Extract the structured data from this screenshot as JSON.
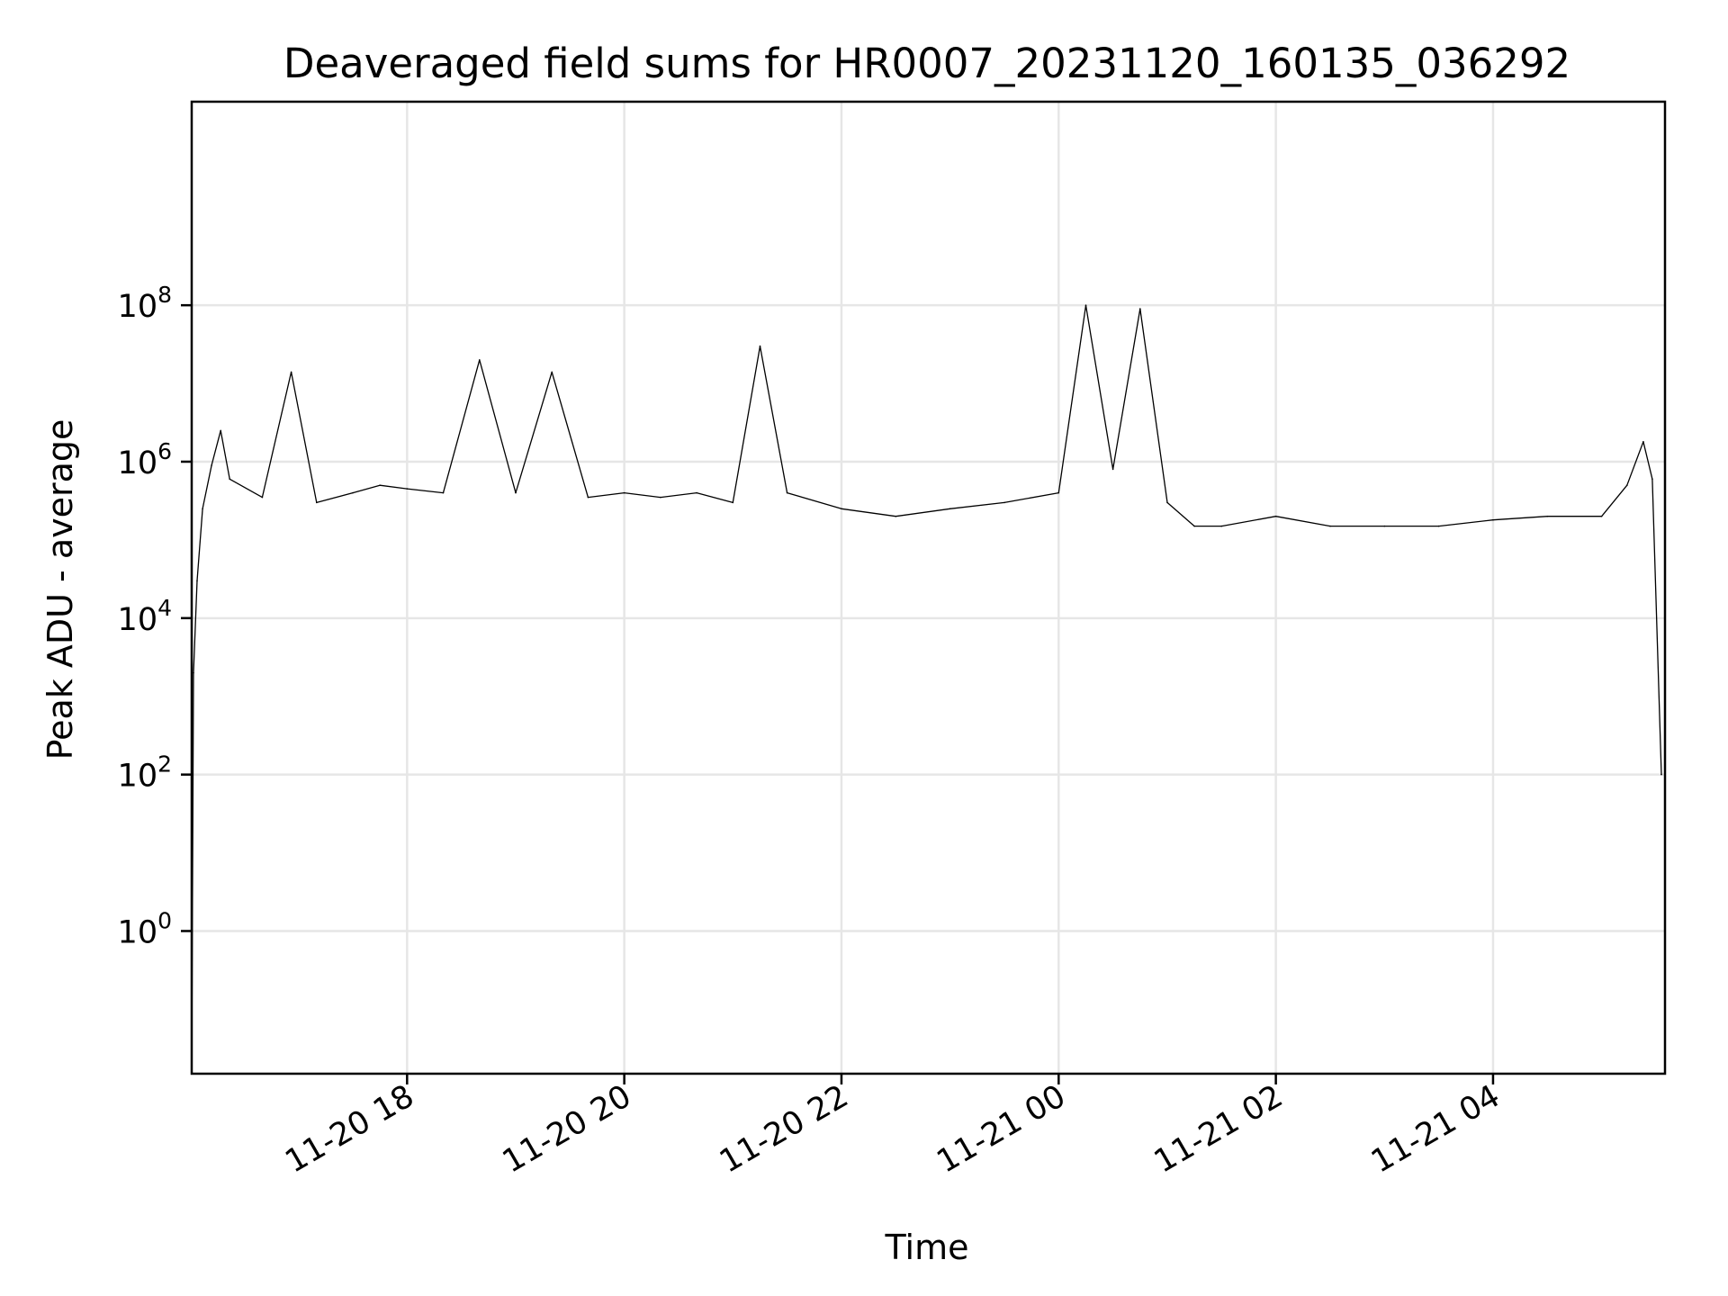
{
  "chart_data": {
    "type": "line",
    "title": "Deaveraged field sums for HR0007_20231120_160135_036292",
    "xlabel": "Time",
    "ylabel": "Peak ADU - average",
    "x_scale": "time",
    "y_scale": "log",
    "xlim": [
      "2023-11-20 16:01",
      "2023-11-21 05:35"
    ],
    "ylim": [
      0.015,
      40000000000
    ],
    "grid": true,
    "x_ticks": [
      {
        "value": "2023-11-20 18:00",
        "label": "11-20 18"
      },
      {
        "value": "2023-11-20 20:00",
        "label": "11-20 20"
      },
      {
        "value": "2023-11-20 22:00",
        "label": "11-20 22"
      },
      {
        "value": "2023-11-21 00:00",
        "label": "11-21 00"
      },
      {
        "value": "2023-11-21 02:00",
        "label": "11-21 02"
      },
      {
        "value": "2023-11-21 04:00",
        "label": "11-21 04"
      }
    ],
    "y_ticks": [
      {
        "value": 1,
        "base": "10",
        "exp": "0"
      },
      {
        "value": 100,
        "base": "10",
        "exp": "2"
      },
      {
        "value": 10000,
        "base": "10",
        "exp": "4"
      },
      {
        "value": 1000000,
        "base": "10",
        "exp": "6"
      },
      {
        "value": 100000000,
        "base": "10",
        "exp": "8"
      }
    ],
    "series": [
      {
        "color": "#000000",
        "points": [
          [
            "2023-11-20 16:01",
            0.015
          ],
          [
            "2023-11-20 16:02",
            2000
          ],
          [
            "2023-11-20 16:04",
            30000
          ],
          [
            "2023-11-20 16:07",
            250000
          ],
          [
            "2023-11-20 16:12",
            900000
          ],
          [
            "2023-11-20 16:17",
            2500000
          ],
          [
            "2023-11-20 16:22",
            600000
          ],
          [
            "2023-11-20 16:40",
            350000
          ],
          [
            "2023-11-20 16:56",
            14000000
          ],
          [
            "2023-11-20 17:10",
            300000
          ],
          [
            "2023-11-20 17:30",
            400000
          ],
          [
            "2023-11-20 17:45",
            500000
          ],
          [
            "2023-11-20 18:00",
            450000
          ],
          [
            "2023-11-20 18:20",
            400000
          ],
          [
            "2023-11-20 18:40",
            20000000
          ],
          [
            "2023-11-20 19:00",
            400000
          ],
          [
            "2023-11-20 19:20",
            14000000
          ],
          [
            "2023-11-20 19:40",
            350000
          ],
          [
            "2023-11-20 20:00",
            400000
          ],
          [
            "2023-11-20 20:20",
            350000
          ],
          [
            "2023-11-20 20:40",
            400000
          ],
          [
            "2023-11-20 21:00",
            300000
          ],
          [
            "2023-11-20 21:15",
            30000000
          ],
          [
            "2023-11-20 21:30",
            400000
          ],
          [
            "2023-11-20 22:00",
            250000
          ],
          [
            "2023-11-20 22:30",
            200000
          ],
          [
            "2023-11-20 23:00",
            250000
          ],
          [
            "2023-11-20 23:30",
            300000
          ],
          [
            "2023-11-21 00:00",
            400000
          ],
          [
            "2023-11-21 00:15",
            100000000
          ],
          [
            "2023-11-21 00:30",
            800000
          ],
          [
            "2023-11-21 00:45",
            90000000
          ],
          [
            "2023-11-21 01:00",
            300000
          ],
          [
            "2023-11-21 01:15",
            150000
          ],
          [
            "2023-11-21 01:30",
            150000
          ],
          [
            "2023-11-21 02:00",
            200000
          ],
          [
            "2023-11-21 02:30",
            150000
          ],
          [
            "2023-11-21 03:00",
            150000
          ],
          [
            "2023-11-21 03:30",
            150000
          ],
          [
            "2023-11-21 04:00",
            180000
          ],
          [
            "2023-11-21 04:30",
            200000
          ],
          [
            "2023-11-21 05:00",
            200000
          ],
          [
            "2023-11-21 05:14",
            500000
          ],
          [
            "2023-11-21 05:23",
            1800000
          ],
          [
            "2023-11-21 05:28",
            600000
          ],
          [
            "2023-11-21 05:33",
            100
          ]
        ]
      }
    ]
  }
}
